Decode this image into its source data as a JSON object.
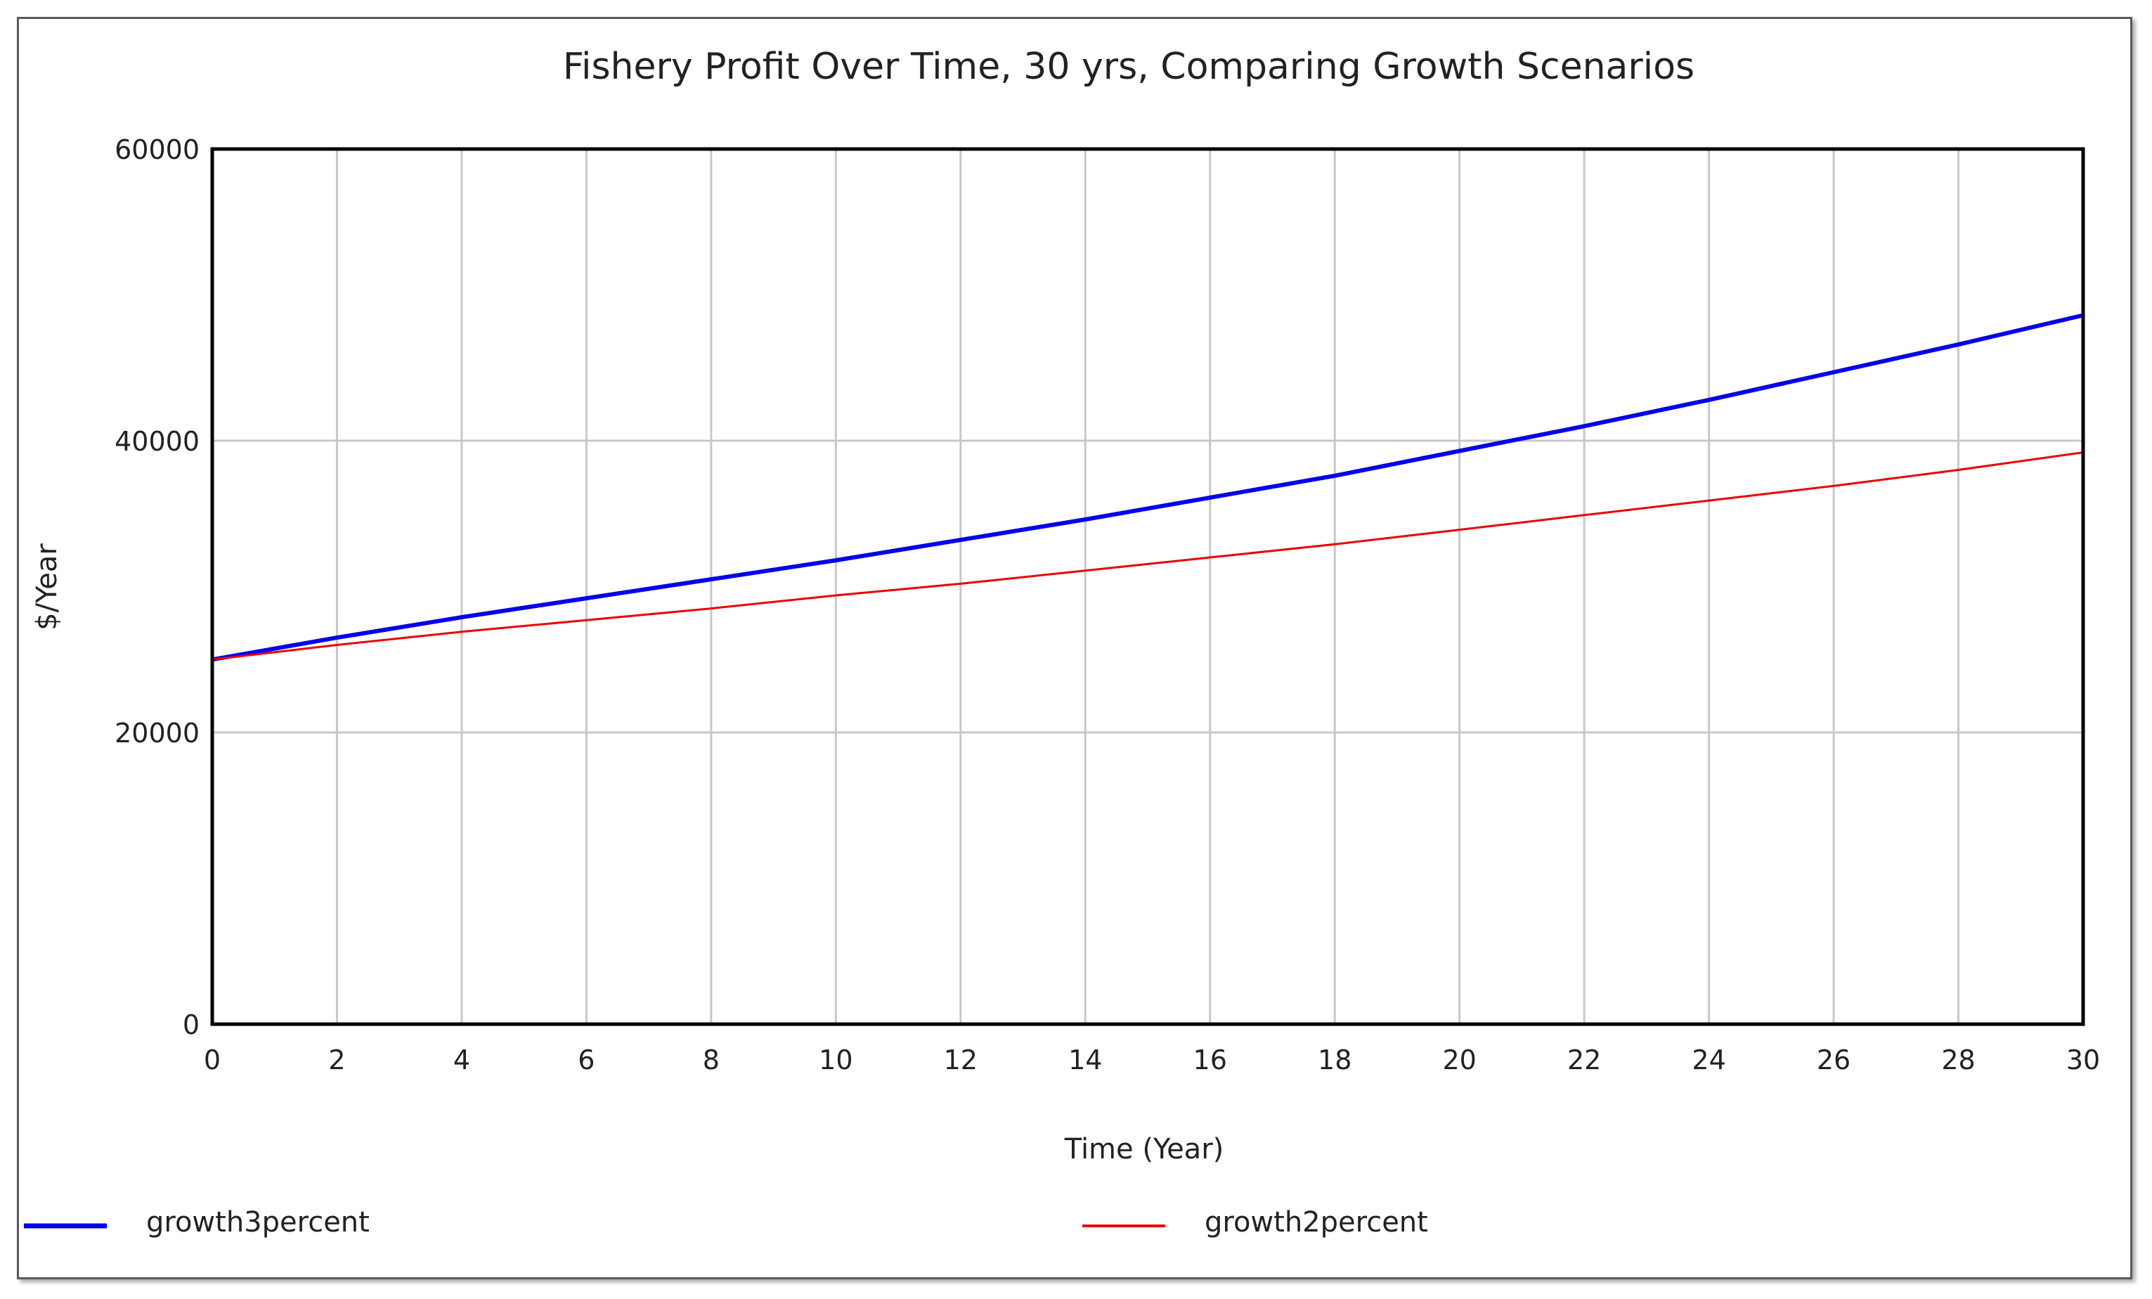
{
  "chart_data": {
    "type": "line",
    "title": "Fishery Profit Over Time, 30 yrs, Comparing Growth Scenarios",
    "xlabel": "Time (Year)",
    "ylabel": "$/Year",
    "xlim": [
      0,
      30
    ],
    "ylim": [
      0,
      60000
    ],
    "x_ticks": [
      0,
      2,
      4,
      6,
      8,
      10,
      12,
      14,
      16,
      18,
      20,
      22,
      24,
      26,
      28,
      30
    ],
    "y_ticks": [
      0,
      20000,
      40000,
      60000
    ],
    "grid": true,
    "legend_position": "bottom",
    "x": [
      0,
      2,
      4,
      6,
      8,
      10,
      12,
      14,
      16,
      18,
      20,
      22,
      24,
      26,
      28,
      30
    ],
    "series": [
      {
        "name": "growth3percent",
        "color": "#0000ee",
        "values": [
          25000,
          26500,
          27900,
          29200,
          30500,
          31800,
          33200,
          34600,
          36100,
          37600,
          39300,
          41000,
          42800,
          44700,
          46600,
          48600
        ]
      },
      {
        "name": "growth2percent",
        "color": "#ee0000",
        "values": [
          25000,
          26000,
          26900,
          27700,
          28500,
          29400,
          30200,
          31100,
          32000,
          32900,
          33900,
          34900,
          35900,
          36900,
          38000,
          39200
        ]
      }
    ]
  }
}
